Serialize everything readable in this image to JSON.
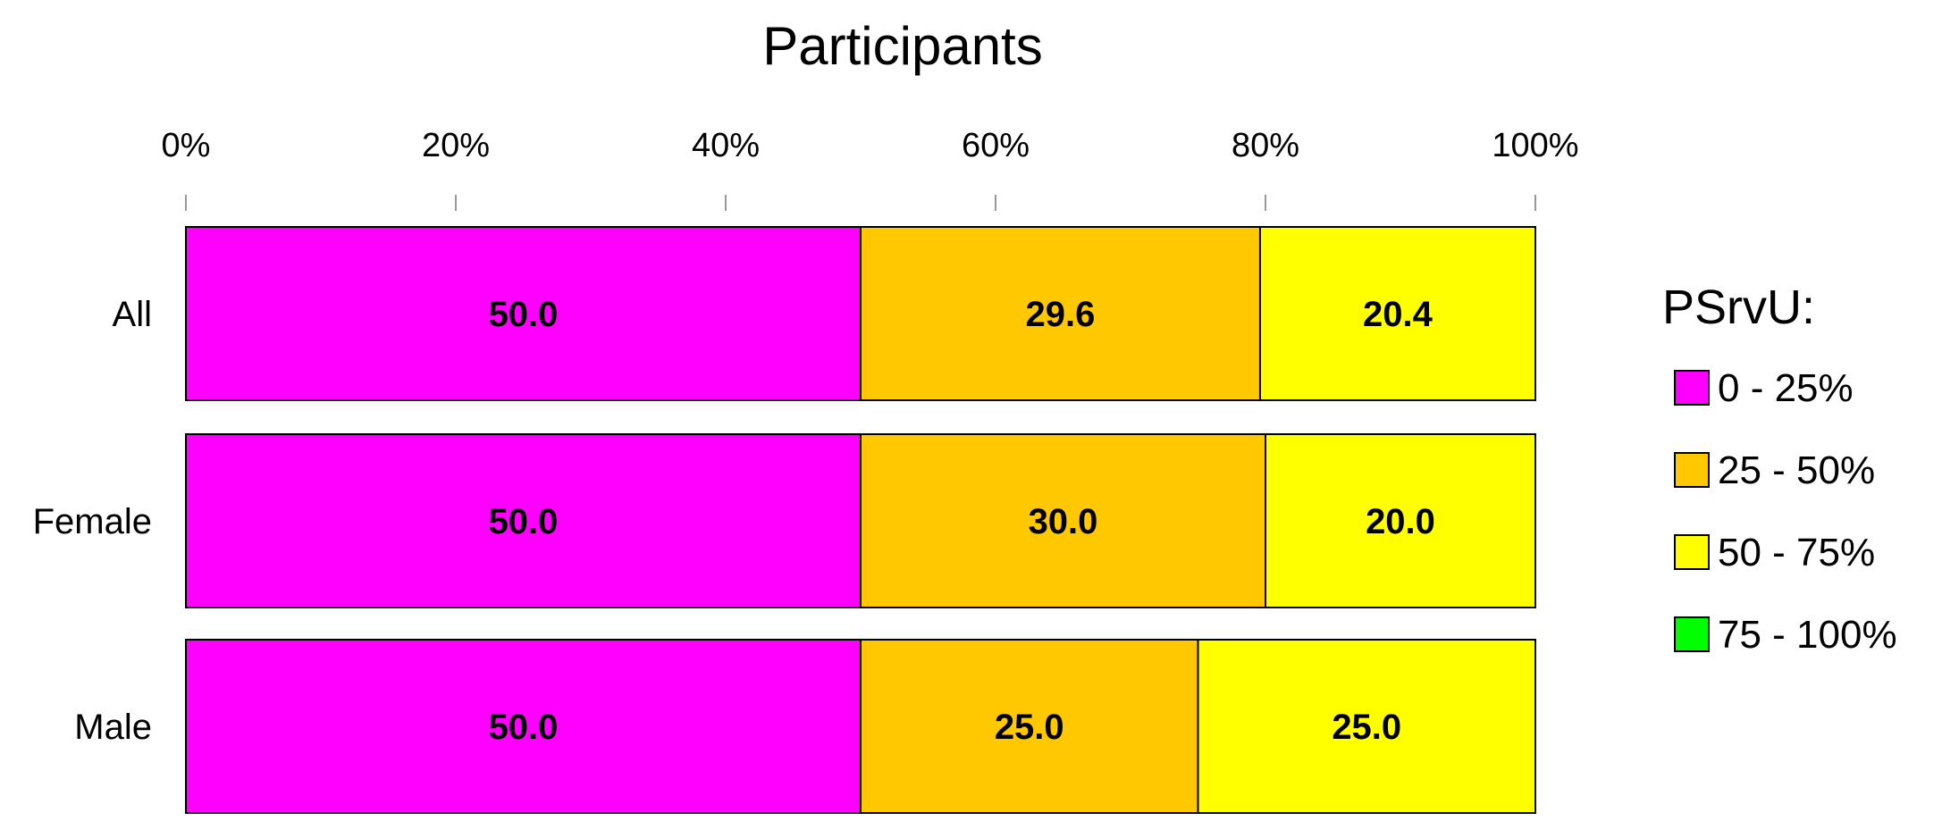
{
  "chart_data": {
    "type": "bar",
    "orientation": "horizontal",
    "stacked": true,
    "title": "Participants",
    "categories": [
      "All",
      "Female",
      "Male"
    ],
    "series": [
      {
        "name": "0 - 25%",
        "color": "#ff00ff",
        "values": [
          50.0,
          50.0,
          50.0
        ]
      },
      {
        "name": "25 - 50%",
        "color": "#ffc800",
        "values": [
          29.6,
          30.0,
          25.0
        ]
      },
      {
        "name": "50 - 75%",
        "color": "#ffff00",
        "values": [
          20.4,
          20.0,
          25.0
        ]
      },
      {
        "name": "75 - 100%",
        "color": "#00ff00",
        "values": [
          0,
          0,
          0
        ]
      }
    ],
    "data_labels": [
      [
        "50.0",
        "29.6",
        "20.4"
      ],
      [
        "50.0",
        "30.0",
        "20.0"
      ],
      [
        "50.0",
        "25.0",
        "25.0"
      ]
    ],
    "x_axis": {
      "range": [
        0,
        100
      ],
      "ticks": [
        0,
        20,
        40,
        60,
        80,
        100
      ],
      "tick_labels": [
        "0%",
        "20%",
        "40%",
        "60%",
        "80%",
        "100%"
      ],
      "position": "top"
    },
    "legend": {
      "title": "PSrvU:",
      "placement": "right"
    },
    "grid": false
  }
}
